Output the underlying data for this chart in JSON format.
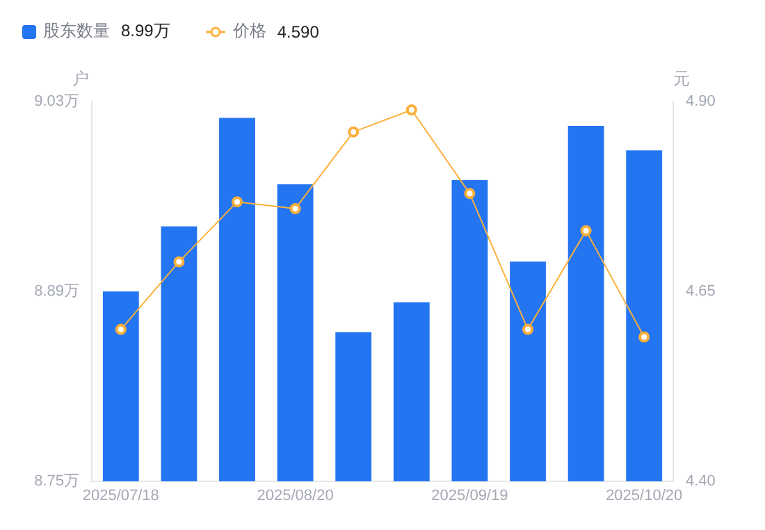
{
  "chart_data": {
    "type": "bar",
    "ylabel": "户",
    "y2label": "元",
    "categories": [
      "2025/07/18",
      null,
      null,
      "2025/08/20",
      null,
      null,
      "2025/09/19",
      null,
      null,
      "2025/10/20"
    ],
    "series": [
      {
        "name": "股东数量",
        "color": "#2475f2",
        "values": [
          8.89,
          8.938,
          9.018,
          8.969,
          8.86,
          8.882,
          8.972,
          8.912,
          9.012,
          8.994
        ]
      },
      {
        "name": "价格",
        "type": "line",
        "axis": "y2",
        "color": "#fbb03b",
        "marker": "circle",
        "values": [
          4.6,
          4.689,
          4.768,
          4.759,
          4.86,
          4.889,
          4.779,
          4.6,
          4.73,
          4.59
        ]
      }
    ],
    "annotations": [
      "8.99万",
      "4.590"
    ],
    "ylim": [
      8.75,
      9.03
    ],
    "yticks": [
      {
        "value": 8.75,
        "label": "8.75万"
      },
      {
        "value": 8.89,
        "label": "8.89万"
      },
      {
        "value": 9.03,
        "label": "9.03万"
      }
    ],
    "y2lim": [
      4.4,
      4.9
    ],
    "y2ticks": [
      {
        "value": 4.4,
        "label": "4.40"
      },
      {
        "value": 4.65,
        "label": "4.65"
      },
      {
        "value": 4.9,
        "label": "4.90"
      }
    ],
    "grid": false,
    "legend": "top left"
  }
}
